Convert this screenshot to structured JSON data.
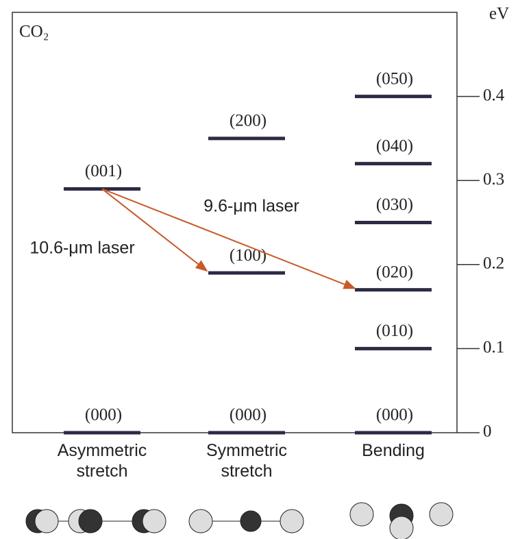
{
  "chart_data": {
    "type": "energy-levels",
    "title": "CO₂",
    "y_label": "eV",
    "ylim": [
      0,
      0.5
    ],
    "yticks": [
      0,
      0.1,
      0.2,
      0.3,
      0.4
    ],
    "columns": [
      {
        "category": "Asymmetric stretch",
        "levels": [
          {
            "label": "(000)",
            "value": 0
          },
          {
            "label": "(001)",
            "value": 0.29
          }
        ]
      },
      {
        "category": "Symmetric stretch",
        "levels": [
          {
            "label": "(000)",
            "value": 0
          },
          {
            "label": "(100)",
            "value": 0.19
          },
          {
            "label": "(200)",
            "value": 0.35
          }
        ]
      },
      {
        "category": "Bending",
        "levels": [
          {
            "label": "(000)",
            "value": 0
          },
          {
            "label": "(010)",
            "value": 0.1
          },
          {
            "label": "(020)",
            "value": 0.17
          },
          {
            "label": "(030)",
            "value": 0.25
          },
          {
            "label": "(040)",
            "value": 0.32
          },
          {
            "label": "(050)",
            "value": 0.4
          }
        ]
      }
    ],
    "annotations": [
      "10.6-μm laser",
      "9.6-μm laser"
    ]
  }
}
